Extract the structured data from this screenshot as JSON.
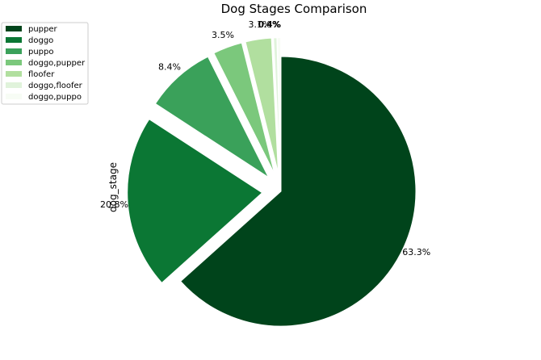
{
  "chart_data": {
    "type": "pie",
    "title": "Dog Stages Comparison",
    "ylabel": "dog_stage",
    "legend_position": "top-left",
    "exploded": true,
    "slices": [
      {
        "label": "pupper",
        "value": 63.3,
        "pct_label": "63.3%",
        "color": "#00441b"
      },
      {
        "label": "doggo",
        "value": 20.8,
        "pct_label": "20.8%",
        "color": "#0b7734"
      },
      {
        "label": "puppo",
        "value": 8.4,
        "pct_label": "8.4%",
        "color": "#3aa15a"
      },
      {
        "label": "doggo,pupper",
        "value": 3.5,
        "pct_label": "3.5%",
        "color": "#7bc87c"
      },
      {
        "label": "floofer",
        "value": 3.1,
        "pct_label": "3.1%",
        "color": "#b1df9f"
      },
      {
        "label": "doggo,floofer",
        "value": 0.4,
        "pct_label": "0.4%",
        "color": "#e0f3db"
      },
      {
        "label": "doggo,puppo",
        "value": 0.4,
        "pct_label": "0.4%",
        "color": "#f7fcf5"
      }
    ]
  }
}
